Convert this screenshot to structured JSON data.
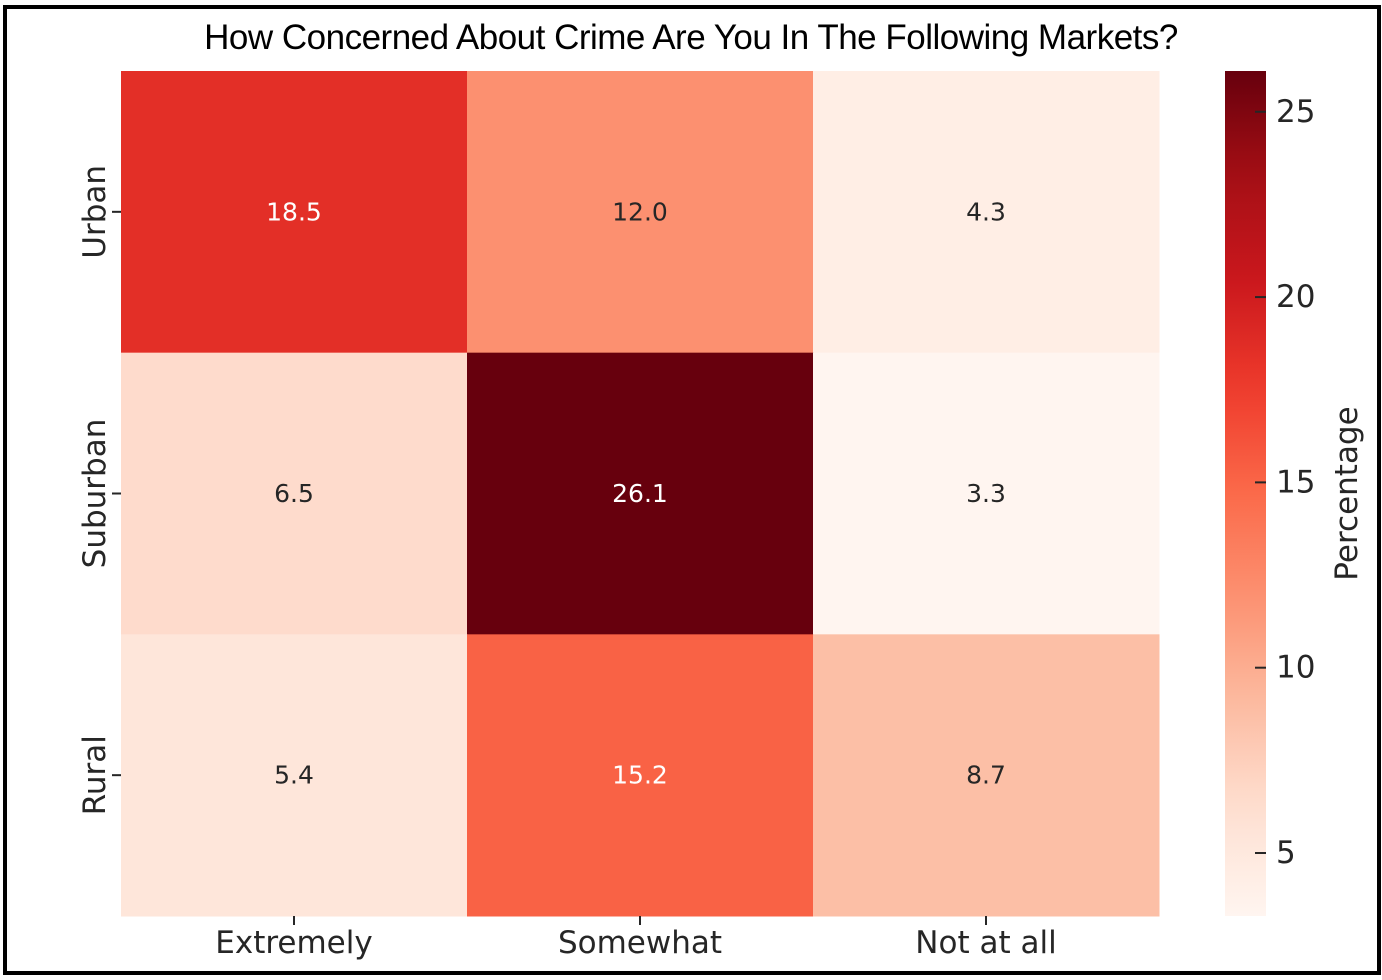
{
  "chart_data": {
    "type": "heatmap",
    "title": "How Concerned About Crime Are You In The Following Markets?",
    "columns": [
      "Extremely",
      "Somewhat",
      "Not at all"
    ],
    "rows": [
      "Urban",
      "Suburban",
      "Rural"
    ],
    "values": [
      [
        18.5,
        12.0,
        4.3
      ],
      [
        6.5,
        26.1,
        3.3
      ],
      [
        5.4,
        15.2,
        8.7
      ]
    ],
    "colorbar": {
      "label": "Percentage",
      "range": [
        3.3,
        26.1
      ],
      "ticks": [
        5,
        10,
        15,
        20,
        25
      ],
      "colormap": "Reds"
    }
  }
}
